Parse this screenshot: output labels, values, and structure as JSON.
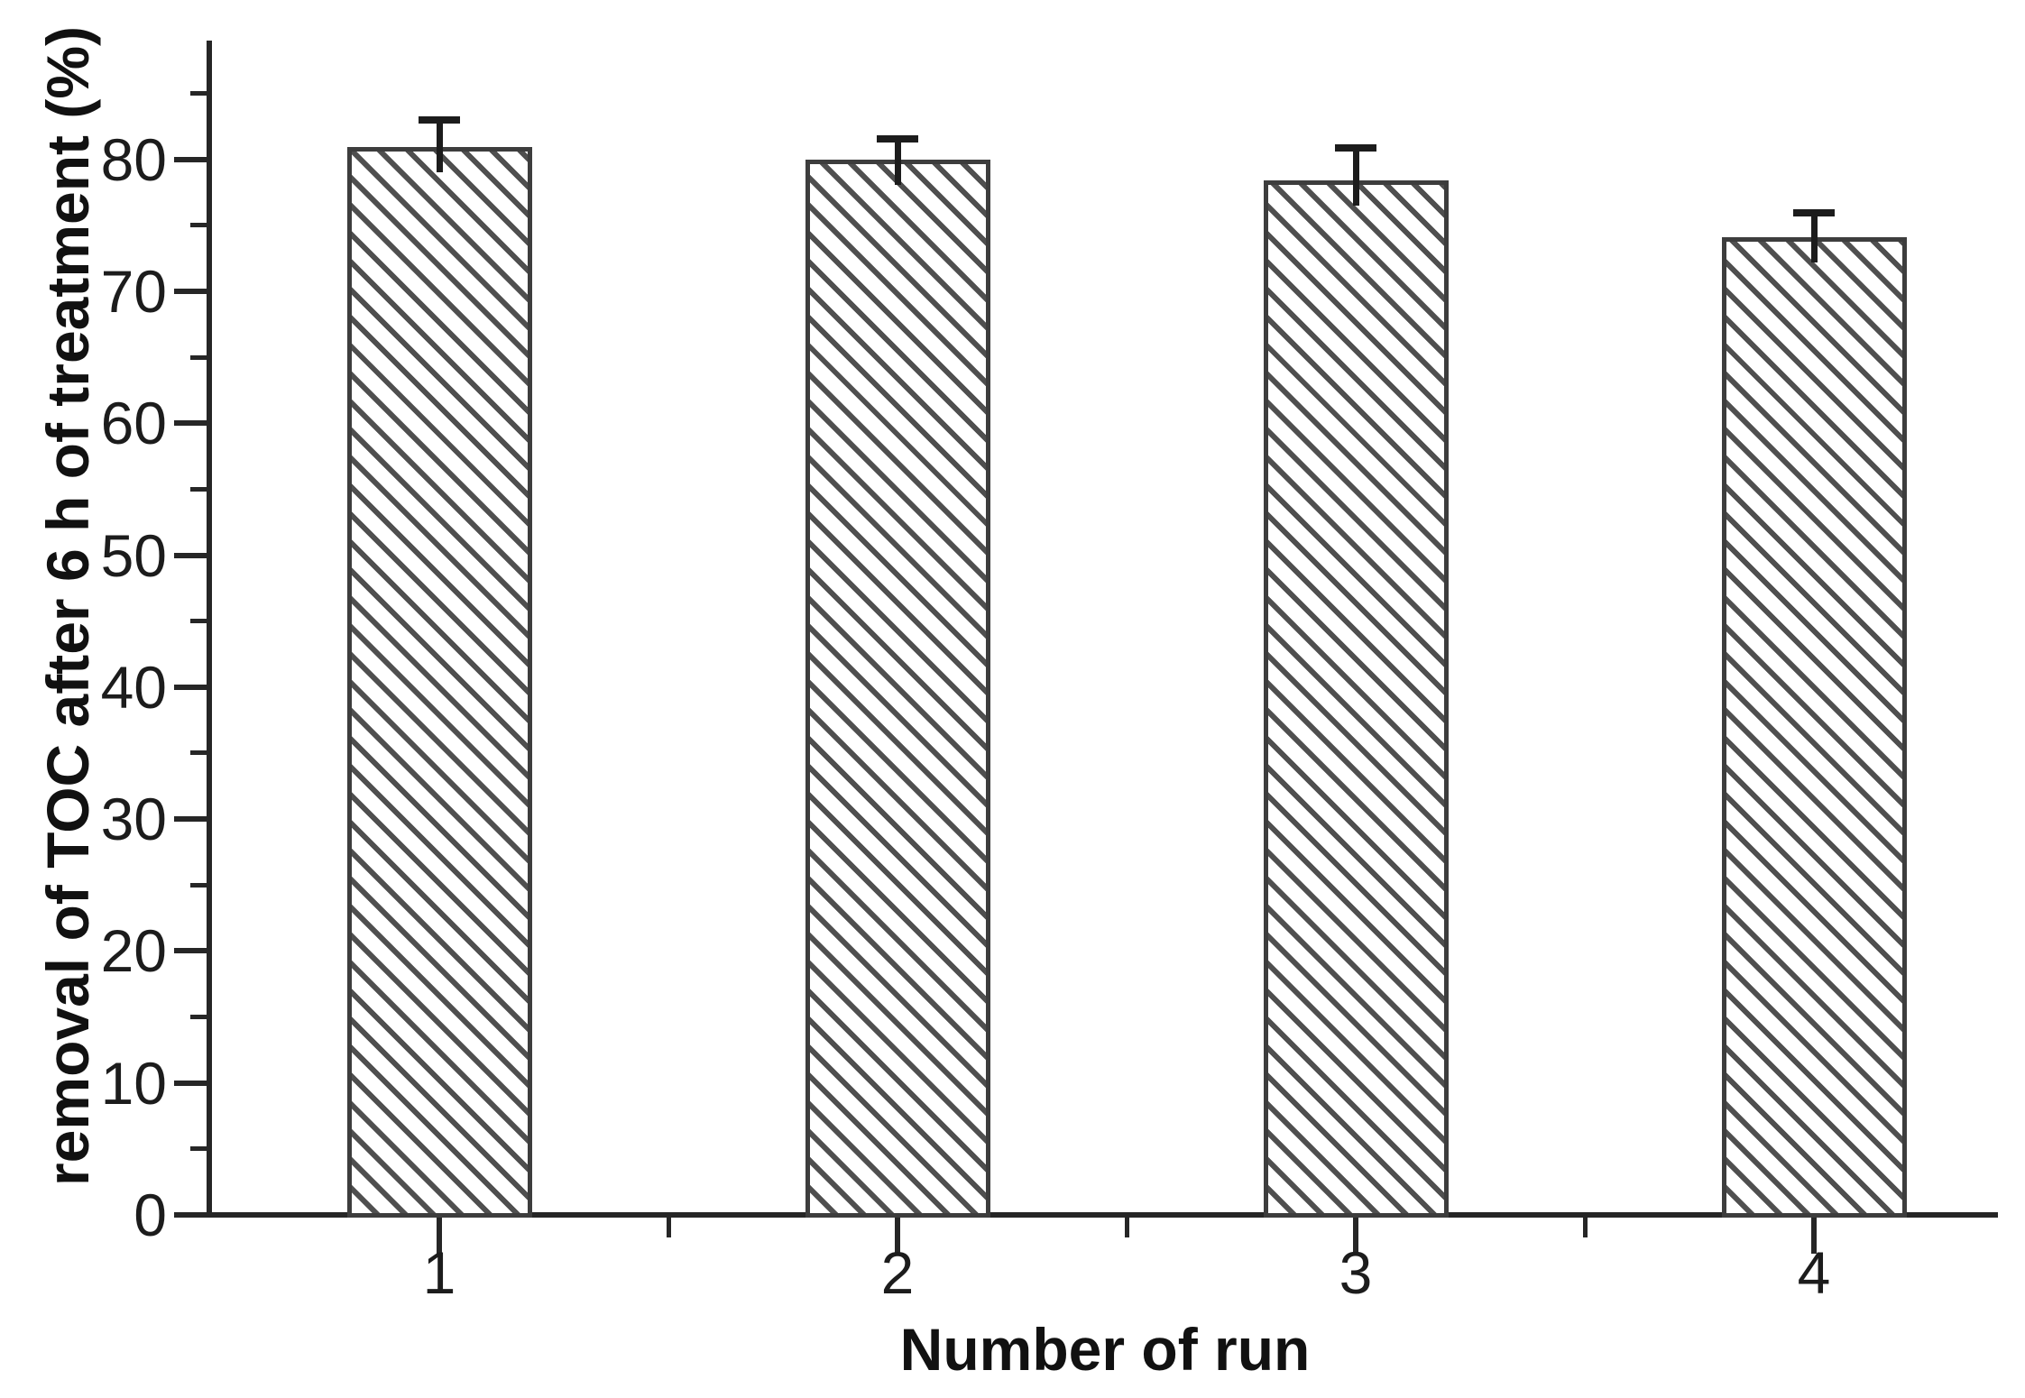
{
  "figure": {
    "background": "#ffffff",
    "axis_color": "#262626",
    "bar_edge_color": "#3d3d3d",
    "hatch_color": "#4f4f4f",
    "error_bar_color": "#1c1c1c"
  },
  "chart_data": {
    "type": "bar",
    "title": "",
    "xlabel": "Number of run",
    "ylabel": "removal of TOC after 6 h of treatment (%)",
    "categories": [
      "1",
      "2",
      "3",
      "4"
    ],
    "series": [
      {
        "name": "removal of TOC after 6 h of treatment (%)",
        "values": [
          80.9,
          80.0,
          78.4,
          74.1
        ],
        "errors_plus": [
          1.8,
          1.3,
          2.2,
          1.6
        ]
      }
    ],
    "bar_style": "diagonal-hatch, white fill, dark edge",
    "ylim": [
      0,
      89
    ],
    "y_major_ticks": [
      0,
      10,
      20,
      30,
      40,
      50,
      60,
      70,
      80
    ],
    "y_minor_ticks": [
      5,
      15,
      25,
      35,
      45,
      55,
      65,
      75,
      85
    ],
    "x_minor_tick_positions": [
      1.5,
      2.5,
      3.5
    ],
    "grid": false,
    "legend": false,
    "spines": [
      "left",
      "bottom"
    ]
  }
}
